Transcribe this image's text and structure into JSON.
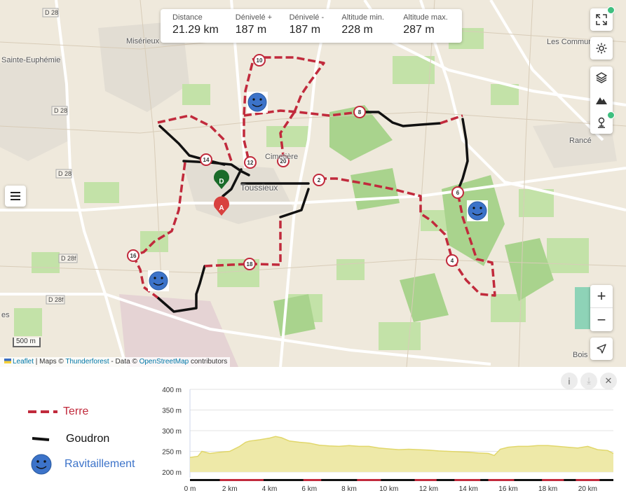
{
  "stats": [
    {
      "label": "Distance",
      "value": "21.29 km"
    },
    {
      "label": "Dénivelé +",
      "value": "187 m"
    },
    {
      "label": "Dénivelé -",
      "value": "187 m"
    },
    {
      "label": "Altitude min.",
      "value": "228 m"
    },
    {
      "label": "Altitude max.",
      "value": "287 m"
    }
  ],
  "places": [
    {
      "name": "Misérieux"
    },
    {
      "name": "Sainte-Euphémie"
    },
    {
      "name": "Toussieux"
    },
    {
      "name": "Cimetière"
    },
    {
      "name": "Les Commun"
    },
    {
      "name": "Rancé"
    },
    {
      "name": "Bois"
    },
    {
      "name": "es"
    }
  ],
  "roads": [
    "D 28",
    "D 28",
    "D 28",
    "D 28f",
    "D 28f"
  ],
  "km_markers": [
    "2",
    "4",
    "6",
    "8",
    "10",
    "12",
    "14",
    "16",
    "18",
    "20"
  ],
  "start_marker": "D",
  "end_marker": "A",
  "scale_label": "500 m",
  "attribution": {
    "leaflet": "Leaflet",
    "maps_prefix": " | Maps © ",
    "thunderforest": "Thunderforest",
    "data_prefix": " - Data © ",
    "osm": "OpenStreetMap",
    "suffix": " contributors"
  },
  "controls": {
    "fullscreen_icon": "expand-icon",
    "settings_icon": "gear-icon",
    "layers_icon": "layers-icon",
    "terrain_icon": "mountain-icon",
    "poi_icon": "pin-icon",
    "zoom_in": "+",
    "zoom_out": "−",
    "locate_icon": "navigation-arrow-icon"
  },
  "legend": [
    {
      "label": "Terre",
      "color": "#c12a3c"
    },
    {
      "label": "Goudron",
      "color": "#000000"
    },
    {
      "label": "Ravitaillement",
      "color": "#3c73c9"
    }
  ],
  "profile": {
    "y_ticks": [
      "400 m",
      "350 m",
      "300 m",
      "250 m",
      "200 m"
    ],
    "x_ticks": [
      "0 m",
      "2 km",
      "4 km",
      "6 km",
      "8 km",
      "10 km",
      "12 km",
      "14 km",
      "16 km",
      "18 km",
      "20 km"
    ],
    "info_btn": "i",
    "download_btn": "⤓",
    "close_btn": "✕"
  },
  "chart_data": {
    "type": "area",
    "x": [
      0,
      0.4,
      0.6,
      1,
      1.5,
      2,
      2.5,
      2.8,
      3,
      3.5,
      4,
      4.3,
      4.6,
      5,
      5.5,
      6,
      6.5,
      7,
      7.5,
      8,
      8.5,
      9,
      9.5,
      10,
      10.5,
      11,
      11.5,
      12,
      12.5,
      13,
      13.5,
      14,
      14.5,
      15,
      15.3,
      15.6,
      16,
      16.5,
      17,
      17.5,
      18,
      18.5,
      19,
      19.5,
      20,
      20.5,
      21,
      21.29
    ],
    "y": [
      235,
      238,
      250,
      245,
      248,
      250,
      262,
      272,
      275,
      278,
      282,
      286,
      283,
      275,
      272,
      270,
      265,
      263,
      262,
      264,
      262,
      262,
      258,
      256,
      254,
      255,
      254,
      253,
      251,
      250,
      249,
      248,
      246,
      245,
      240,
      255,
      260,
      262,
      262,
      264,
      264,
      262,
      260,
      258,
      262,
      254,
      252,
      245
    ],
    "xlim": [
      0,
      21.29
    ],
    "ylim": [
      200,
      400
    ]
  }
}
